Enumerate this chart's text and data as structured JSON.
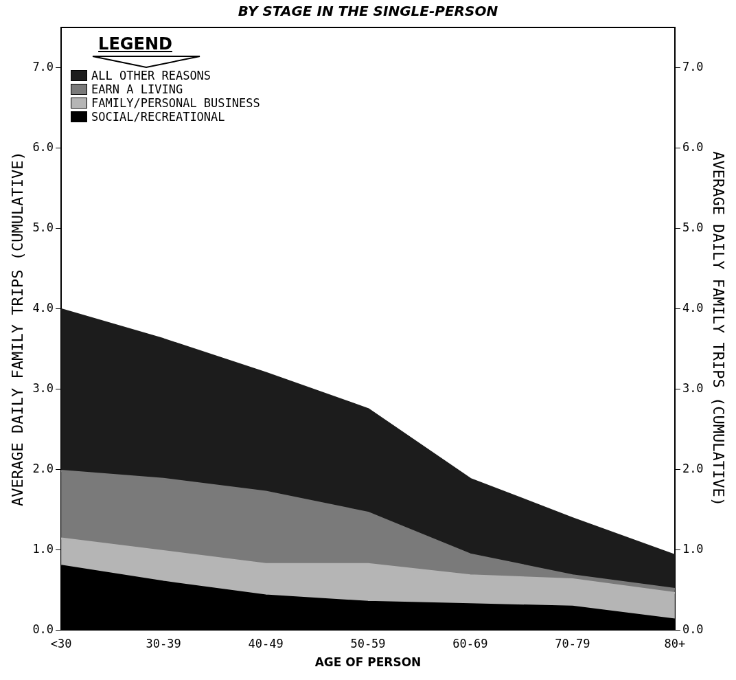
{
  "chart_data": {
    "type": "area",
    "title": "BY STAGE IN THE SINGLE-PERSON",
    "xlabel": "AGE OF PERSON",
    "ylabel": "AVERAGE DAILY FAMILY TRIPS (CUMULATIVE)",
    "y2label": "AVERAGE DAILY FAMILY TRIPS (CUMULATIVE)",
    "legend_title": "LEGEND",
    "categories": [
      "<30",
      "30-39",
      "40-49",
      "50-59",
      "60-69",
      "70-79",
      "80+"
    ],
    "stacked": true,
    "series": [
      {
        "name": "SOCIAL/RECREATIONAL",
        "color": "#000000",
        "values": [
          0.8,
          0.6,
          0.43,
          0.35,
          0.32,
          0.29,
          0.13
        ]
      },
      {
        "name": "FAMILY/PERSONAL BUSINESS",
        "color": "#b5b5b5",
        "values": [
          0.34,
          0.38,
          0.39,
          0.47,
          0.36,
          0.34,
          0.33
        ]
      },
      {
        "name": "EARN A LIVING",
        "color": "#7a7a7a",
        "values": [
          0.84,
          0.9,
          0.9,
          0.64,
          0.26,
          0.05,
          0.05
        ]
      },
      {
        "name": "ALL OTHER REASONS",
        "color": "#1c1c1c",
        "values": [
          2.01,
          1.74,
          1.48,
          1.29,
          0.94,
          0.71,
          0.42
        ]
      }
    ],
    "ylim": [
      0,
      7.5
    ],
    "yticks": [
      {
        "value": 0,
        "label": "0.0"
      },
      {
        "value": 1,
        "label": "1.0"
      },
      {
        "value": 2,
        "label": "2.0"
      },
      {
        "value": 3,
        "label": "3.0"
      },
      {
        "value": 4,
        "label": "4.0"
      },
      {
        "value": 5,
        "label": "5.0"
      },
      {
        "value": 6,
        "label": "6.0"
      },
      {
        "value": 7,
        "label": "7.0"
      }
    ],
    "y2lim": [
      0,
      7.5
    ],
    "y2ticks": [
      {
        "value": 0,
        "label": "0.0"
      },
      {
        "value": 1,
        "label": "1.0"
      },
      {
        "value": 2,
        "label": "2.0"
      },
      {
        "value": 3,
        "label": "3.0"
      },
      {
        "value": 4,
        "label": "4.0"
      },
      {
        "value": 5,
        "label": "5.0"
      },
      {
        "value": 6,
        "label": "6.0"
      },
      {
        "value": 7,
        "label": "7.0"
      }
    ],
    "grid": false,
    "legend": "top left"
  }
}
